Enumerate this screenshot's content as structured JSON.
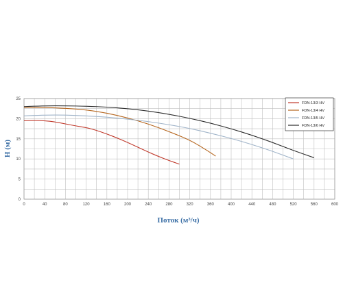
{
  "chart_data": {
    "type": "line",
    "xlabel": "Поток (м³/ч)",
    "ylabel": "H (м)",
    "xlim": [
      0,
      600
    ],
    "ylim": [
      0,
      25
    ],
    "x_ticks": [
      "0",
      "40",
      "80",
      "120",
      "160",
      "200",
      "240",
      "280",
      "320",
      "360",
      "400",
      "440",
      "480",
      "520",
      "560",
      "600"
    ],
    "y_ticks": [
      "0",
      "5",
      "10",
      "15",
      "20",
      "25"
    ],
    "grid": true,
    "legend_position": "top-right",
    "series": [
      {
        "name": "FDN-13/3 HV",
        "color": "#c0392b",
        "points": [
          [
            0,
            19.5
          ],
          [
            20,
            19.6
          ],
          [
            40,
            19.5
          ],
          [
            60,
            19.2
          ],
          [
            80,
            18.7
          ],
          [
            100,
            18.2
          ],
          [
            120,
            17.8
          ],
          [
            140,
            17.1
          ],
          [
            160,
            16.2
          ],
          [
            180,
            15.2
          ],
          [
            200,
            14.1
          ],
          [
            220,
            12.9
          ],
          [
            240,
            11.7
          ],
          [
            260,
            10.6
          ],
          [
            280,
            9.6
          ],
          [
            300,
            8.7
          ]
        ]
      },
      {
        "name": "FDN-13/4 HV",
        "color": "#b5651d",
        "points": [
          [
            0,
            22.8
          ],
          [
            40,
            22.8
          ],
          [
            80,
            22.6
          ],
          [
            120,
            22.2
          ],
          [
            160,
            21.4
          ],
          [
            200,
            20.2
          ],
          [
            240,
            18.7
          ],
          [
            280,
            16.8
          ],
          [
            320,
            14.7
          ],
          [
            350,
            12.4
          ],
          [
            370,
            10.7
          ]
        ]
      },
      {
        "name": "FDN-13/5 HV",
        "color": "#9fb3c8",
        "points": [
          [
            0,
            20.7
          ],
          [
            40,
            20.9
          ],
          [
            80,
            20.9
          ],
          [
            120,
            20.7
          ],
          [
            160,
            20.4
          ],
          [
            200,
            19.9
          ],
          [
            240,
            19.3
          ],
          [
            280,
            18.5
          ],
          [
            320,
            17.6
          ],
          [
            360,
            16.4
          ],
          [
            400,
            15.1
          ],
          [
            440,
            13.6
          ],
          [
            480,
            11.9
          ],
          [
            520,
            10.0
          ]
        ]
      },
      {
        "name": "FDN-13/6 HV",
        "color": "#2c2c2c",
        "points": [
          [
            0,
            23.0
          ],
          [
            40,
            23.2
          ],
          [
            80,
            23.2
          ],
          [
            120,
            23.1
          ],
          [
            160,
            22.9
          ],
          [
            200,
            22.5
          ],
          [
            240,
            21.9
          ],
          [
            280,
            21.1
          ],
          [
            320,
            20.1
          ],
          [
            360,
            18.9
          ],
          [
            400,
            17.5
          ],
          [
            440,
            15.9
          ],
          [
            480,
            14.1
          ],
          [
            520,
            12.1
          ],
          [
            560,
            10.3
          ]
        ]
      }
    ]
  }
}
